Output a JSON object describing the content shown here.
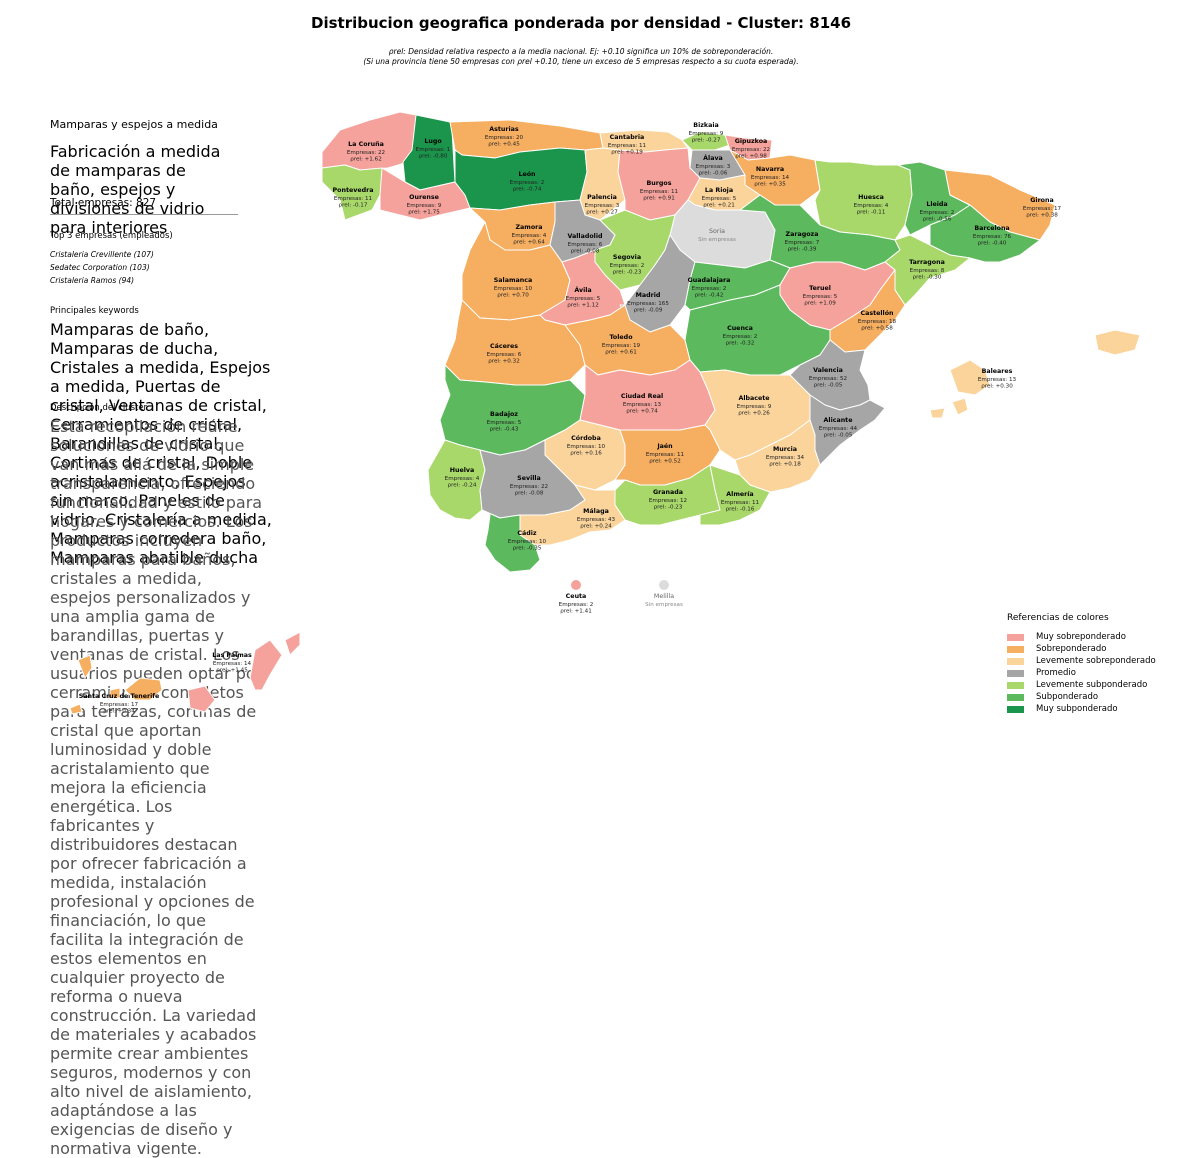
{
  "title": "Distribucion geografica ponderada por densidad - Cluster: 8146",
  "note_line1": "ρrel: Densidad relativa respecto a la media nacional. Ej: +0.10 significa un 10% de sobreponderación.",
  "note_line2": "(Si una provincia tiene 50 empresas con ρrel +0.10, tiene un exceso de 5 empresas respecto a su cuota esperada).",
  "cluster_name": "Mamparas y espejos a medida",
  "cluster_desc": "Fabricación a medida de mamparas de baño, espejos y divisiones de vidrio para interiores",
  "total": "Total empresas: 827",
  "top3_title": "Top 3 empresas (empleados)",
  "top3": [
    "Cristaleria Crevillente (107)",
    "Sedatec Corporation (103)",
    "Cristaleria Ramos (94)"
  ],
  "keywords_title": "Principales keywords",
  "keywords": "Mamparas de baño, Mamparas de ducha, Cristales a medida, Espejos a medida, Puertas de cristal, Ventanas de cristal, Cerramientos de cristal, Barandillas de cristal, Cortinas de cristal, Doble acristalamiento, Espejos sin marco, Paneles de vidrio, Cristalería a medida, Mamparas corredera baño, Mamparas abatible ducha",
  "description_title": "Descripción del cluster",
  "description": "Esta recopilación reúne soluciones de vidrio que van más allá de la simple transparencia, ofreciendo funcionalidad y estilo para hogares y comercios. Los productos incluyen mamparas para baños, cristales a medida, espejos personalizados y una amplia gama de barandillas, puertas y ventanas de cristal. Los usuarios pueden optar por cerramientos completos para terrazas, cortinas de cristal que aportan luminosidad y doble acristalamiento que mejora la eficiencia energética. Los fabricantes y distribuidores destacan por ofrecer fabricación a medida, instalación profesional y opciones de financiación, lo que facilita la integración de estos elementos en cualquier proyecto de reforma o nueva construcción. La variedad de materiales y acabados permite crear ambientes seguros, modernos y con alto nivel de aislamiento, adaptándose a las exigencias de diseño y normativa vigente.",
  "colors": {
    "muy_sobre": "#f4a29b",
    "sobre": "#f6ae61",
    "lev_sobre": "#fbd49c",
    "promedio": "#a6a6a6",
    "lev_sub": "#a8d86a",
    "sub": "#5cb95d",
    "muy_sub": "#1b944c",
    "nodata": "#dcdcdc"
  },
  "legend": {
    "title": "Referencias de colores",
    "items": [
      {
        "label": "Muy sobreponderado",
        "color": "#f4a29b"
      },
      {
        "label": "Sobreponderado",
        "color": "#f6ae61"
      },
      {
        "label": "Levemente sobreponderado",
        "color": "#fbd49c"
      },
      {
        "label": "Promedio",
        "color": "#a6a6a6"
      },
      {
        "label": "Levemente subponderado",
        "color": "#a8d86a"
      },
      {
        "label": "Subponderado",
        "color": "#5cb95d"
      },
      {
        "label": "Muy subponderado",
        "color": "#1b944c"
      }
    ]
  },
  "sin_empresas": "Sin empresas",
  "empresas_prefix": "Empresas: ",
  "rho_prefix": "ρrel: ",
  "provinces": [
    {
      "name": "La Coruña",
      "empresas": "22",
      "rho": "+1.62",
      "cls": "muy_sobre"
    },
    {
      "name": "Lugo",
      "empresas": "1",
      "rho": "-0.80",
      "cls": "muy_sub"
    },
    {
      "name": "Asturias",
      "empresas": "20",
      "rho": "+0.45",
      "cls": "sobre"
    },
    {
      "name": "Cantabria",
      "empresas": "11",
      "rho": "+0.19",
      "cls": "lev_sobre"
    },
    {
      "name": "Bizkaia",
      "empresas": "9",
      "rho": "-0.27",
      "cls": "lev_sub"
    },
    {
      "name": "Gipuzkoa",
      "empresas": "22",
      "rho": "+0.98",
      "cls": "muy_sobre"
    },
    {
      "name": "Álava",
      "empresas": "3",
      "rho": "-0.06",
      "cls": "promedio"
    },
    {
      "name": "Navarra",
      "empresas": "14",
      "rho": "+0.35",
      "cls": "sobre"
    },
    {
      "name": "Pontevedra",
      "empresas": "11",
      "rho": "-0.17",
      "cls": "lev_sub"
    },
    {
      "name": "Ourense",
      "empresas": "9",
      "rho": "+1.75",
      "cls": "muy_sobre"
    },
    {
      "name": "León",
      "empresas": "2",
      "rho": "-0.74",
      "cls": "muy_sub"
    },
    {
      "name": "Palencia",
      "empresas": "3",
      "rho": "+0.27",
      "cls": "lev_sobre"
    },
    {
      "name": "Burgos",
      "empresas": "11",
      "rho": "+0.91",
      "cls": "muy_sobre"
    },
    {
      "name": "La Rioja",
      "empresas": "5",
      "rho": "+0.21",
      "cls": "lev_sobre"
    },
    {
      "name": "Huesca",
      "empresas": "4",
      "rho": "-0.11",
      "cls": "lev_sub"
    },
    {
      "name": "Lleida",
      "empresas": "2",
      "rho": "-0.56",
      "cls": "sub"
    },
    {
      "name": "Girona",
      "empresas": "17",
      "rho": "+0.38",
      "cls": "sobre"
    },
    {
      "name": "Barcelona",
      "empresas": "76",
      "rho": "-0.40",
      "cls": "sub"
    },
    {
      "name": "Zamora",
      "empresas": "4",
      "rho": "+0.64",
      "cls": "sobre"
    },
    {
      "name": "Valladolid",
      "empresas": "6",
      "rho": "-0.08",
      "cls": "promedio"
    },
    {
      "name": "Soria",
      "empresas": "",
      "rho": "",
      "cls": "nodata"
    },
    {
      "name": "Zaragoza",
      "empresas": "7",
      "rho": "-0.39",
      "cls": "sub"
    },
    {
      "name": "Tarragona",
      "empresas": "8",
      "rho": "-0.30",
      "cls": "lev_sub"
    },
    {
      "name": "Segovia",
      "empresas": "2",
      "rho": "-0.23",
      "cls": "lev_sub"
    },
    {
      "name": "Salamanca",
      "empresas": "10",
      "rho": "+0.70",
      "cls": "sobre"
    },
    {
      "name": "Ávila",
      "empresas": "5",
      "rho": "+1.12",
      "cls": "muy_sobre"
    },
    {
      "name": "Madrid",
      "empresas": "165",
      "rho": "-0.09",
      "cls": "promedio"
    },
    {
      "name": "Guadalajara",
      "empresas": "2",
      "rho": "-0.42",
      "cls": "sub"
    },
    {
      "name": "Teruel",
      "empresas": "5",
      "rho": "+1.09",
      "cls": "muy_sobre"
    },
    {
      "name": "Castellón",
      "empresas": "18",
      "rho": "+0.58",
      "cls": "sobre"
    },
    {
      "name": "Cáceres",
      "empresas": "6",
      "rho": "+0.32",
      "cls": "sobre"
    },
    {
      "name": "Toledo",
      "empresas": "19",
      "rho": "+0.61",
      "cls": "sobre"
    },
    {
      "name": "Cuenca",
      "empresas": "2",
      "rho": "-0.32",
      "cls": "sub"
    },
    {
      "name": "Valencia",
      "empresas": "52",
      "rho": "-0.05",
      "cls": "promedio"
    },
    {
      "name": "Baleares",
      "empresas": "13",
      "rho": "+0.30",
      "cls": "lev_sobre"
    },
    {
      "name": "Badajoz",
      "empresas": "5",
      "rho": "-0.43",
      "cls": "sub"
    },
    {
      "name": "Ciudad Real",
      "empresas": "13",
      "rho": "+0.74",
      "cls": "muy_sobre"
    },
    {
      "name": "Albacete",
      "empresas": "9",
      "rho": "+0.26",
      "cls": "lev_sobre"
    },
    {
      "name": "Alicante",
      "empresas": "44",
      "rho": "-0.05",
      "cls": "promedio"
    },
    {
      "name": "Córdoba",
      "empresas": "10",
      "rho": "+0.16",
      "cls": "lev_sobre"
    },
    {
      "name": "Jaén",
      "empresas": "11",
      "rho": "+0.52",
      "cls": "sobre"
    },
    {
      "name": "Murcia",
      "empresas": "34",
      "rho": "+0.18",
      "cls": "lev_sobre"
    },
    {
      "name": "Huelva",
      "empresas": "4",
      "rho": "-0.24",
      "cls": "lev_sub"
    },
    {
      "name": "Sevilla",
      "empresas": "22",
      "rho": "-0.08",
      "cls": "promedio"
    },
    {
      "name": "Granada",
      "empresas": "12",
      "rho": "-0.23",
      "cls": "lev_sub"
    },
    {
      "name": "Almería",
      "empresas": "11",
      "rho": "-0.16",
      "cls": "lev_sub"
    },
    {
      "name": "Málaga",
      "empresas": "43",
      "rho": "+0.24",
      "cls": "lev_sobre"
    },
    {
      "name": "Cádiz",
      "empresas": "10",
      "rho": "-0.35",
      "cls": "sub"
    },
    {
      "name": "Ceuta",
      "empresas": "2",
      "rho": "+1.41",
      "cls": "muy_sobre"
    },
    {
      "name": "Melilla",
      "empresas": "",
      "rho": "",
      "cls": "nodata"
    },
    {
      "name": "Las Palmas",
      "empresas": "14",
      "rho": "+1.45",
      "cls": "muy_sobre"
    },
    {
      "name": "Santa Cruz de Tenerife",
      "empresas": "17",
      "rho": "+0.34",
      "cls": "sobre"
    }
  ]
}
